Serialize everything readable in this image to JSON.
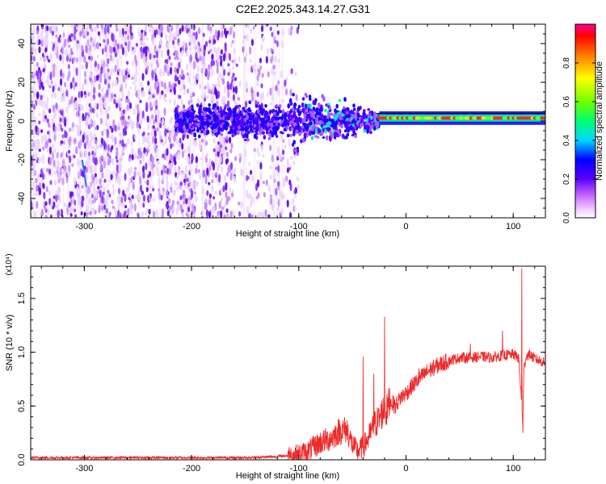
{
  "title": "C2E2.2025.343.14.27.G31",
  "colors": {
    "snr_line": "#ee2a2a",
    "heat_low": "#f0e0ff",
    "heat_mid": "#6a00e8",
    "axis": "#000000"
  },
  "chart_data": [
    {
      "type": "heatmap",
      "title": "C2E2.2025.343.14.27.G31",
      "xlabel": "Height of straight line (km)",
      "ylabel": "Frequency (Hz)",
      "xlim": [
        -350,
        130
      ],
      "ylim": [
        -50,
        50
      ],
      "x_ticks": [
        -300,
        -200,
        -100,
        0,
        100
      ],
      "y_ticks": [
        -40,
        -20,
        0,
        20,
        40
      ],
      "colorbar": {
        "label": "Normalized spectral amplitude",
        "range": [
          0,
          1
        ],
        "ticks": [
          "0.0",
          "0.2",
          "0.4",
          "0.6",
          "0.8"
        ],
        "colormap": "rainbow (magenta-blue-cyan-green-yellow-red)"
      },
      "features": {
        "noise_region_x": [
          -350,
          -110
        ],
        "transition_x": [
          -110,
          -25
        ],
        "carrier_band_x": [
          -25,
          130
        ],
        "carrier_frequency_hz": 1.5
      }
    },
    {
      "type": "line",
      "xlabel": "Height of straight line (km)",
      "ylabel": "SNR (10 * v/v)",
      "y_multiplier": "(x10⁴)",
      "xlim": [
        -350,
        130
      ],
      "ylim": [
        0,
        1.8
      ],
      "x_ticks": [
        -300,
        -200,
        -100,
        0,
        100
      ],
      "y_ticks": [
        "0.0",
        "0.5",
        "1.0",
        "1.5"
      ],
      "series": [
        {
          "x": [
            -350,
            -300,
            -250,
            -200,
            -150,
            -120,
            -100,
            -90,
            -80,
            -70,
            -62,
            -55,
            -50,
            -45,
            -40,
            -35,
            -30,
            -25,
            -20,
            -18,
            -15,
            -10,
            -5,
            0,
            10,
            20,
            30,
            40,
            50,
            60,
            70,
            80,
            90,
            100,
            105,
            109,
            110,
            112,
            115,
            120,
            130
          ],
          "y": [
            0.02,
            0.02,
            0.02,
            0.02,
            0.02,
            0.03,
            0.05,
            0.09,
            0.16,
            0.2,
            0.27,
            0.28,
            0.14,
            0.08,
            0.12,
            0.2,
            0.32,
            0.38,
            0.48,
            0.45,
            0.55,
            0.5,
            0.58,
            0.62,
            0.73,
            0.82,
            0.88,
            0.92,
            0.95,
            0.95,
            0.96,
            0.95,
            0.97,
            0.98,
            0.95,
            0.35,
            0.85,
            0.96,
            0.98,
            0.94,
            0.9
          ],
          "spikes": [
            {
              "x": -20,
              "y": 1.33
            },
            {
              "x": -40,
              "y": 0.96
            },
            {
              "x": -30,
              "y": 0.8
            },
            {
              "x": 108,
              "y": 1.78
            },
            {
              "x": 109,
              "y": 0.25
            },
            {
              "x": 90,
              "y": 1.2
            },
            {
              "x": 60,
              "y": 1.08
            },
            {
              "x": 12,
              "y": 0.85
            }
          ]
        }
      ]
    }
  ]
}
